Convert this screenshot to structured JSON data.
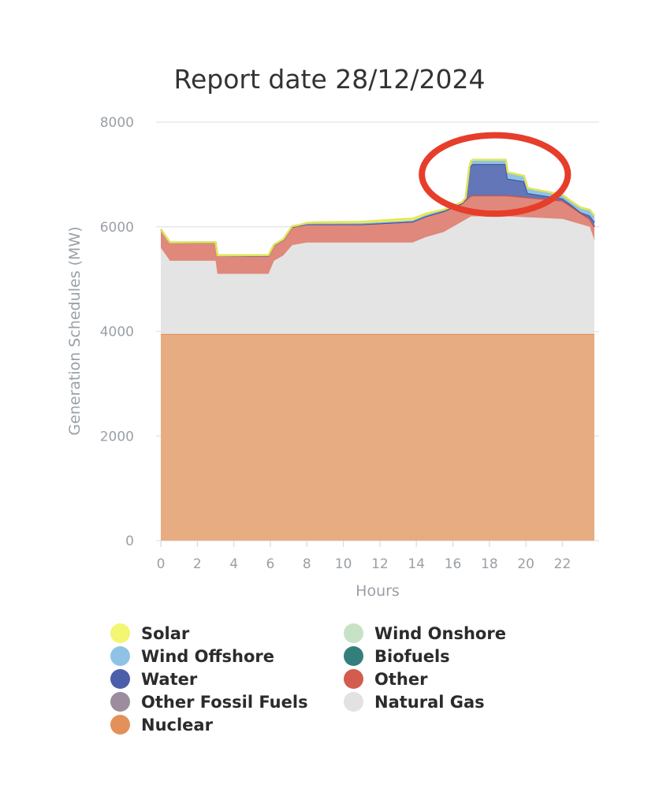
{
  "chart_data": {
    "type": "area",
    "stacked": true,
    "title": "Report date 28/12/2024",
    "xlabel": "Hours",
    "ylabel": "Generation Schedules (MW)",
    "xlim": [
      0,
      23.75
    ],
    "ylim": [
      0,
      8000
    ],
    "x_ticks": [
      0,
      2,
      4,
      6,
      8,
      10,
      12,
      14,
      16,
      18,
      20,
      22
    ],
    "y_ticks": [
      0,
      2000,
      4000,
      6000,
      8000
    ],
    "grid": "horizontal",
    "legend_position": "bottom",
    "series": [
      {
        "name": "Nuclear",
        "color": "#e8ac82",
        "line_color": "#e3905a",
        "points": [
          [
            0,
            3950
          ],
          [
            23.75,
            3950
          ]
        ]
      },
      {
        "name": "Natural Gas",
        "color": "#e4e4e4",
        "line_color": "#e4e4e4",
        "points": [
          [
            0,
            1650
          ],
          [
            0.5,
            1400
          ],
          [
            3,
            1400
          ],
          [
            3.1,
            1150
          ],
          [
            5.9,
            1150
          ],
          [
            6.2,
            1400
          ],
          [
            6.7,
            1500
          ],
          [
            7.2,
            1700
          ],
          [
            8,
            1750
          ],
          [
            11,
            1750
          ],
          [
            13.8,
            1750
          ],
          [
            14.5,
            1850
          ],
          [
            15.5,
            1950
          ],
          [
            16.5,
            2150
          ],
          [
            17,
            2250
          ],
          [
            19,
            2250
          ],
          [
            22,
            2200
          ],
          [
            23.5,
            2050
          ],
          [
            23.75,
            1800
          ]
        ]
      },
      {
        "name": "Other",
        "color": "#e0887b",
        "line_color": "#c95447",
        "points": [
          [
            0,
            350
          ],
          [
            0.5,
            350
          ],
          [
            3,
            350
          ],
          [
            3.1,
            350
          ],
          [
            5.9,
            350
          ],
          [
            6.2,
            300
          ],
          [
            6.7,
            300
          ],
          [
            7.2,
            350
          ],
          [
            8,
            350
          ],
          [
            11,
            350
          ],
          [
            13.8,
            400
          ],
          [
            14.5,
            400
          ],
          [
            15.5,
            400
          ],
          [
            16.5,
            350
          ],
          [
            17,
            400
          ],
          [
            19,
            400
          ],
          [
            22,
            350
          ],
          [
            23.5,
            150
          ],
          [
            23.75,
            250
          ]
        ]
      },
      {
        "name": "Water",
        "color": "#6276b8",
        "line_color": "#3f54a0",
        "points": [
          [
            0,
            0
          ],
          [
            16.5,
            0
          ],
          [
            16.7,
            20
          ],
          [
            16.9,
            550
          ],
          [
            17.1,
            600
          ],
          [
            18.9,
            600
          ],
          [
            19,
            320
          ],
          [
            19.9,
            300
          ],
          [
            20.1,
            80
          ],
          [
            22.5,
            30
          ],
          [
            23,
            10
          ],
          [
            23.75,
            90
          ]
        ]
      },
      {
        "name": "Wind Offshore",
        "color": "#8fc3e6",
        "line_color": "#7ab3de",
        "points": [
          [
            0,
            0
          ],
          [
            14,
            20
          ],
          [
            16.9,
            20
          ],
          [
            17,
            80
          ],
          [
            18.9,
            80
          ],
          [
            19,
            120
          ],
          [
            20.5,
            90
          ],
          [
            22.5,
            70
          ],
          [
            23.75,
            120
          ]
        ]
      },
      {
        "name": "Solar",
        "color": "#f4f570",
        "line_color": "#e5e650",
        "points": [
          [
            0,
            0
          ],
          [
            7.5,
            0
          ],
          [
            8.5,
            25
          ],
          [
            11,
            30
          ],
          [
            13,
            40
          ],
          [
            14.5,
            30
          ],
          [
            16,
            0
          ],
          [
            23.75,
            0
          ]
        ]
      },
      {
        "name": "Wind Onshore",
        "color": "#c7e2c7",
        "line_color": "#b5d8b5",
        "points": [
          [
            0,
            0
          ],
          [
            23.75,
            0
          ]
        ]
      },
      {
        "name": "Biofuels",
        "color": "#347f7c",
        "line_color": "#347f7c",
        "points": [
          [
            0,
            0
          ],
          [
            23.75,
            0
          ]
        ]
      },
      {
        "name": "Other Fossil Fuels",
        "color": "#9b8c9e",
        "line_color": "#9b8c9e",
        "points": [
          [
            0,
            0
          ],
          [
            23.75,
            0
          ]
        ]
      }
    ],
    "annotation": {
      "type": "circle-highlight",
      "color": "#e63e2b",
      "center": [
        18.3,
        7000
      ],
      "rx_hours": 4,
      "ry_mw": 750
    }
  },
  "legend": {
    "items": [
      {
        "label": "Solar",
        "color": "#f4f570"
      },
      {
        "label": "Wind Onshore",
        "color": "#c7e2c7"
      },
      {
        "label": "Wind Offshore",
        "color": "#8fc3e6"
      },
      {
        "label": "Biofuels",
        "color": "#347f7c"
      },
      {
        "label": "Water",
        "color": "#4a5eaa"
      },
      {
        "label": "Other",
        "color": "#d35c4e"
      },
      {
        "label": "Other Fossil Fuels",
        "color": "#9b8c9e"
      },
      {
        "label": "Natural Gas",
        "color": "#e2e2e2"
      },
      {
        "label": "Nuclear",
        "color": "#e3905a"
      }
    ]
  }
}
